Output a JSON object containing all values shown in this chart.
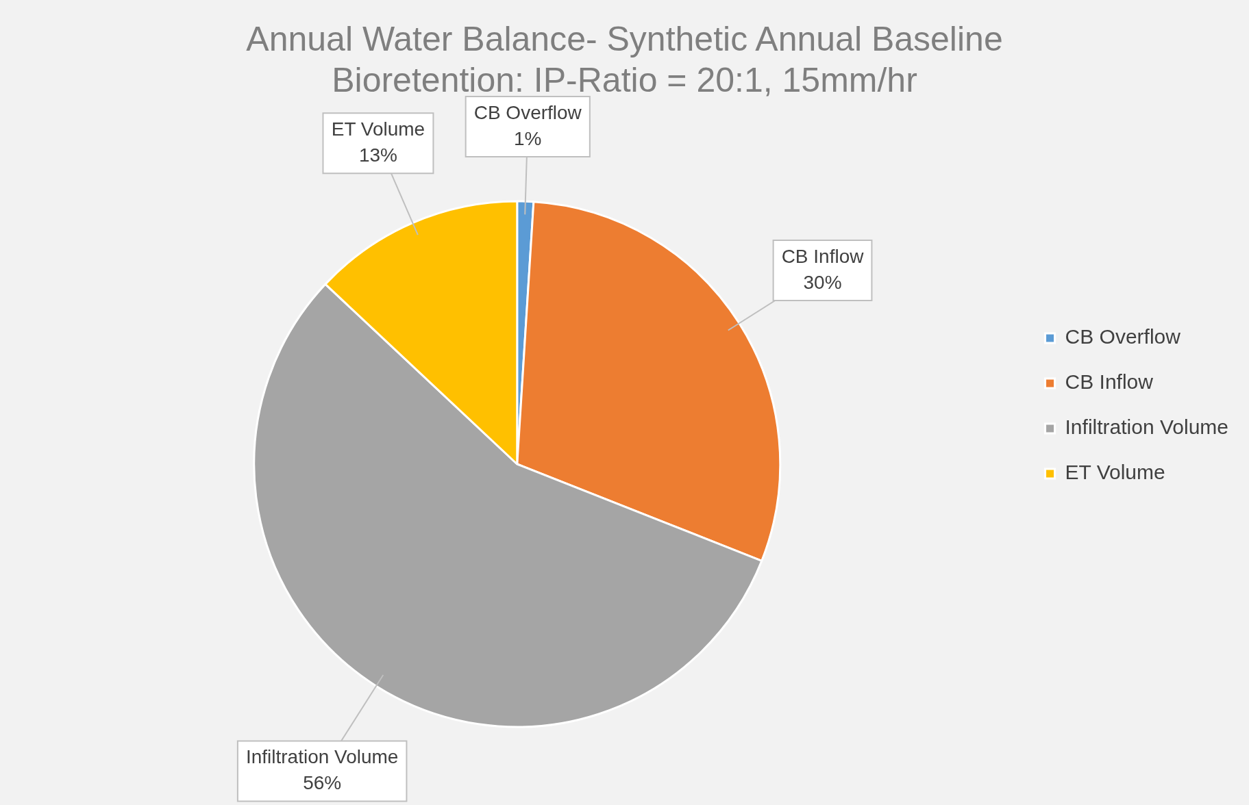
{
  "chart_data": {
    "type": "pie",
    "title": "Annual Water Balance- Synthetic Annual Baseline\nBioretention: IP-Ratio = 20:1, 15mm/hr",
    "categories": [
      "CB Overflow",
      "CB Inflow",
      "Infiltration Volume",
      "ET Volume"
    ],
    "values": [
      1,
      30,
      56,
      13
    ],
    "colors": [
      "#5b9bd5",
      "#ed7d31",
      "#a5a5a5",
      "#ffc000"
    ],
    "value_labels": [
      "1%",
      "30%",
      "56%",
      "13%"
    ],
    "legend": "right"
  }
}
